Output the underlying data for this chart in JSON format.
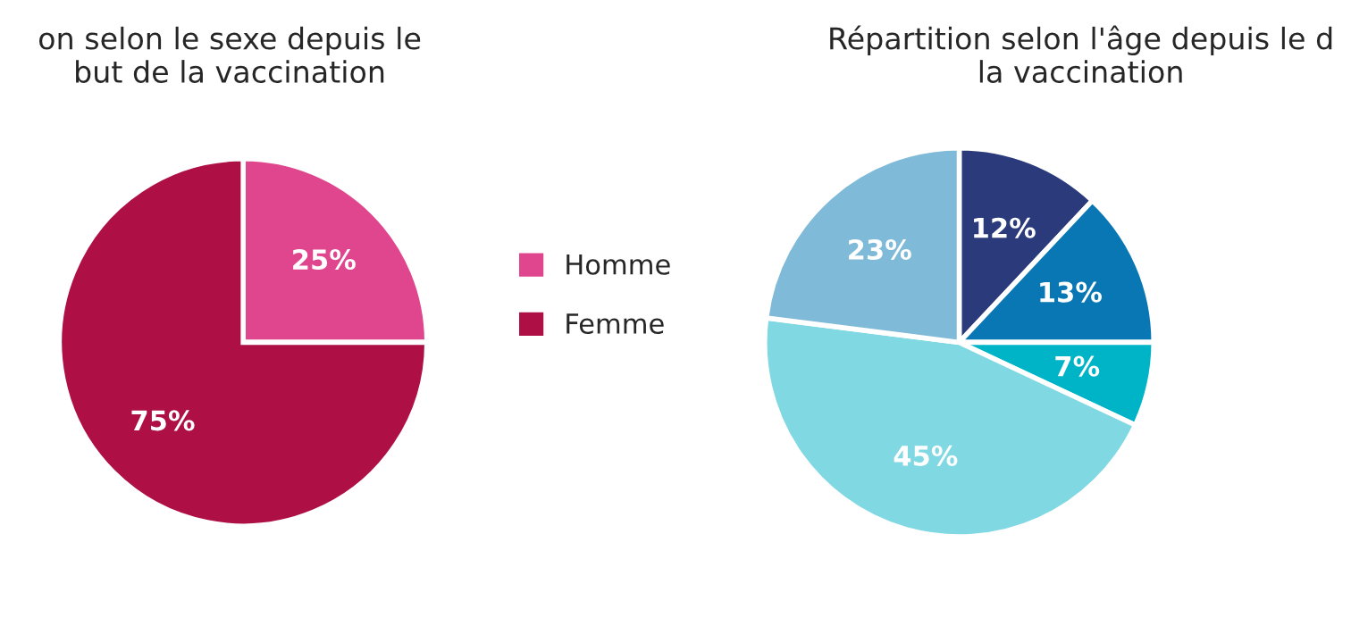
{
  "chart_data": [
    {
      "type": "pie",
      "title": "on selon le sexe depuis le\nbut de la vaccination",
      "categories": [
        "Homme",
        "Femme"
      ],
      "values": [
        25,
        75
      ],
      "colors": [
        "#e0468e",
        "#ae1045"
      ],
      "value_labels": [
        "25%",
        "75%"
      ],
      "legend": "right"
    },
    {
      "type": "pie",
      "title": "Répartition selon l'âge depuis le d\nla vaccination",
      "categories": [
        null,
        null,
        null,
        null,
        null
      ],
      "values": [
        12,
        13,
        7,
        45,
        23
      ],
      "colors": [
        "#2b3a7a",
        "#0a77b5",
        "#00b4c8",
        "#80d8e2",
        "#7fbad8"
      ],
      "value_labels": [
        "12%",
        "13%",
        "7%",
        "45%",
        "23%"
      ]
    }
  ]
}
